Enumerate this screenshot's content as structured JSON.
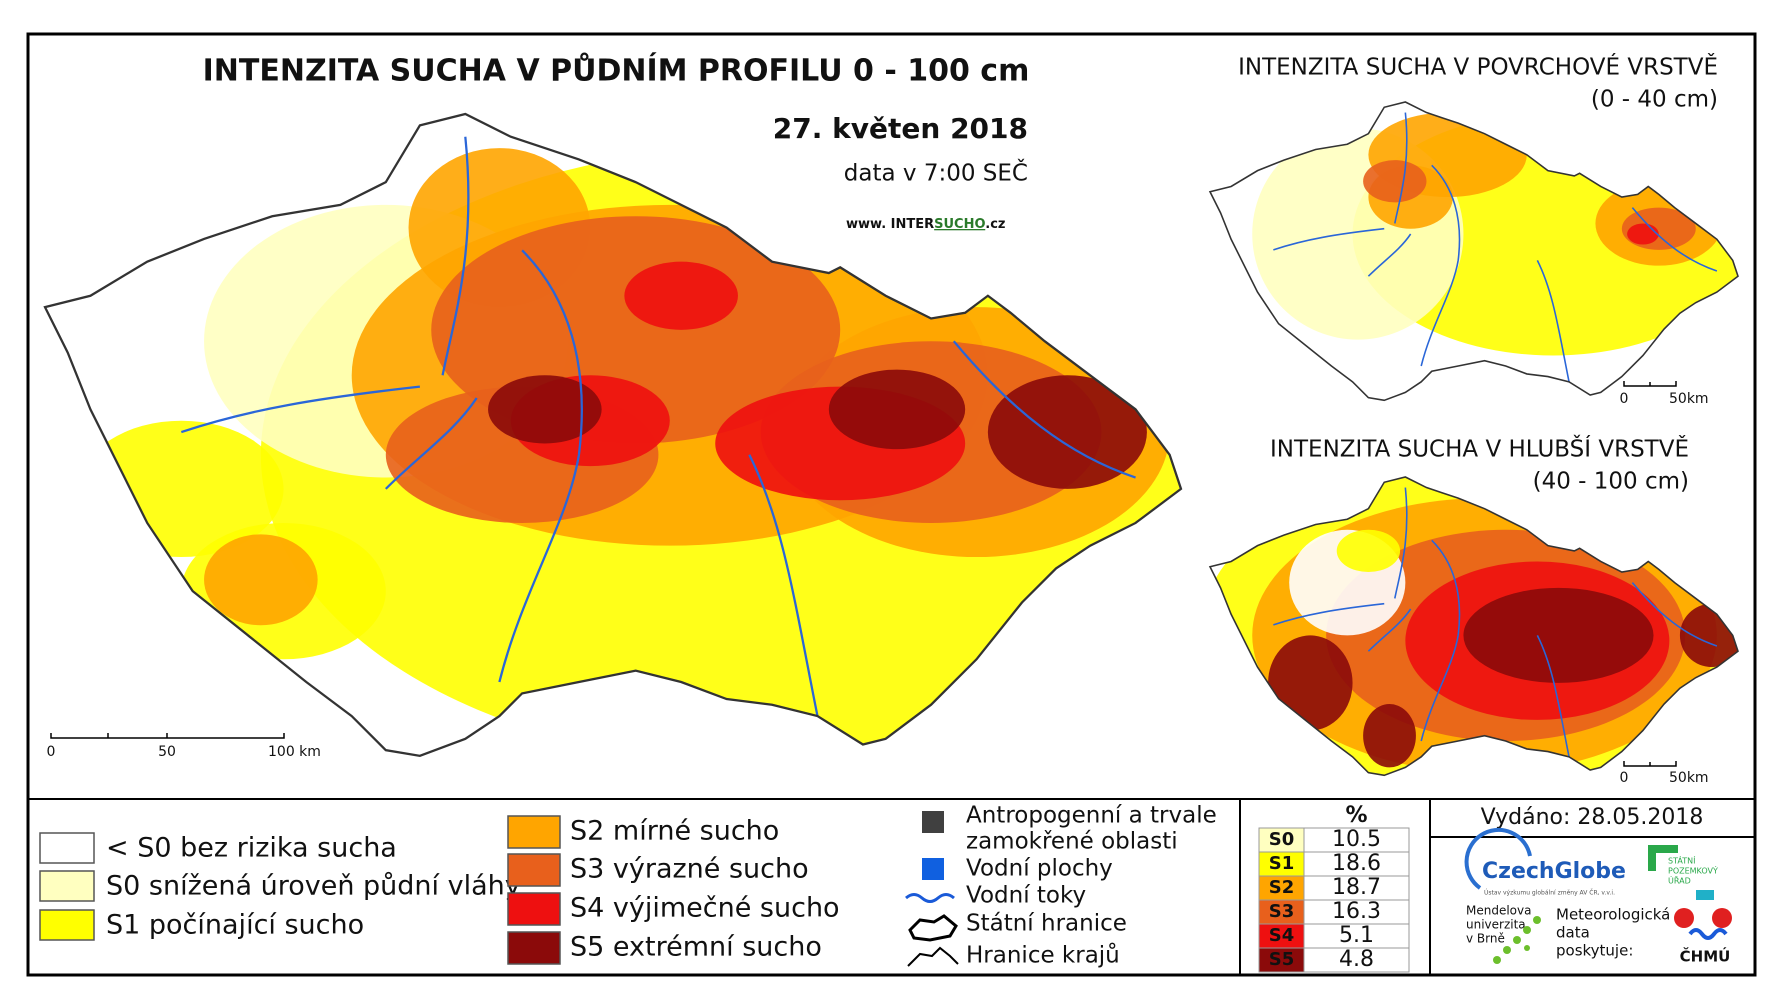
{
  "main_map": {
    "title": "INTENZITA SUCHA V PŮDNÍM PROFILU 0 - 100 cm",
    "date": "27. květen 2018",
    "time_note": "data v 7:00 SEČ",
    "website": [
      "www. INTER",
      "SUCHO",
      ".cz"
    ],
    "scale_labels": [
      "0",
      "50",
      "100 km"
    ]
  },
  "inset_surface": {
    "title": "INTENZITA SUCHA V POVRCHOVÉ VRSTVĚ",
    "subtitle": "(0 - 40 cm)",
    "scale_labels": [
      "0",
      "50km"
    ]
  },
  "inset_deep": {
    "title": "INTENZITA SUCHA V HLUBŠÍ VRSTVĚ",
    "subtitle": "(40 - 100 cm)",
    "scale_labels": [
      "0",
      "50km"
    ]
  },
  "legend": {
    "classes": [
      {
        "label": "< S0 bez rizika sucha",
        "color": "#ffffff"
      },
      {
        "label": "S0 snížená úroveň půdní vláhy",
        "color": "#ffffc0"
      },
      {
        "label": "S1 počínající sucho",
        "color": "#ffff00"
      },
      {
        "label": "S2 mírné sucho",
        "color": "#ffa500"
      },
      {
        "label": "S3 výrazné sucho",
        "color": "#e8601c"
      },
      {
        "label": "S4 výjimečné sucho",
        "color": "#ee1010"
      },
      {
        "label": "S5 extrémní sucho",
        "color": "#8b0a0a"
      }
    ],
    "other": [
      "Antropogenní a trvale",
      "zamokřené oblasti",
      "Vodní plochy",
      "Vodní toky",
      "Státní hranice",
      "Hranice krajů"
    ]
  },
  "table": {
    "header": "%",
    "rows": [
      {
        "class": "S0",
        "percent": "10.5"
      },
      {
        "class": "S1",
        "percent": "18.6"
      },
      {
        "class": "S2",
        "percent": "18.7"
      },
      {
        "class": "S3",
        "percent": "16.3"
      },
      {
        "class": "S4",
        "percent": "5.1"
      },
      {
        "class": "S5",
        "percent": "4.8"
      }
    ]
  },
  "footer": {
    "issued": "Vydáno: 28.05.2018",
    "czechglobe": "CzechGlobe",
    "czechglobe_sub": "Ústav výzkumu globální změny AV ČR, v.v.i.",
    "spu": [
      "STÁTNÍ",
      "POZEMKOVÝ",
      "ÚŘAD"
    ],
    "mendel": [
      "Mendelova",
      "univerzita",
      "v Brně"
    ],
    "data_note": [
      "Meteorologická",
      "data",
      "poskytuje:"
    ],
    "chmu": "ČHMÚ"
  }
}
